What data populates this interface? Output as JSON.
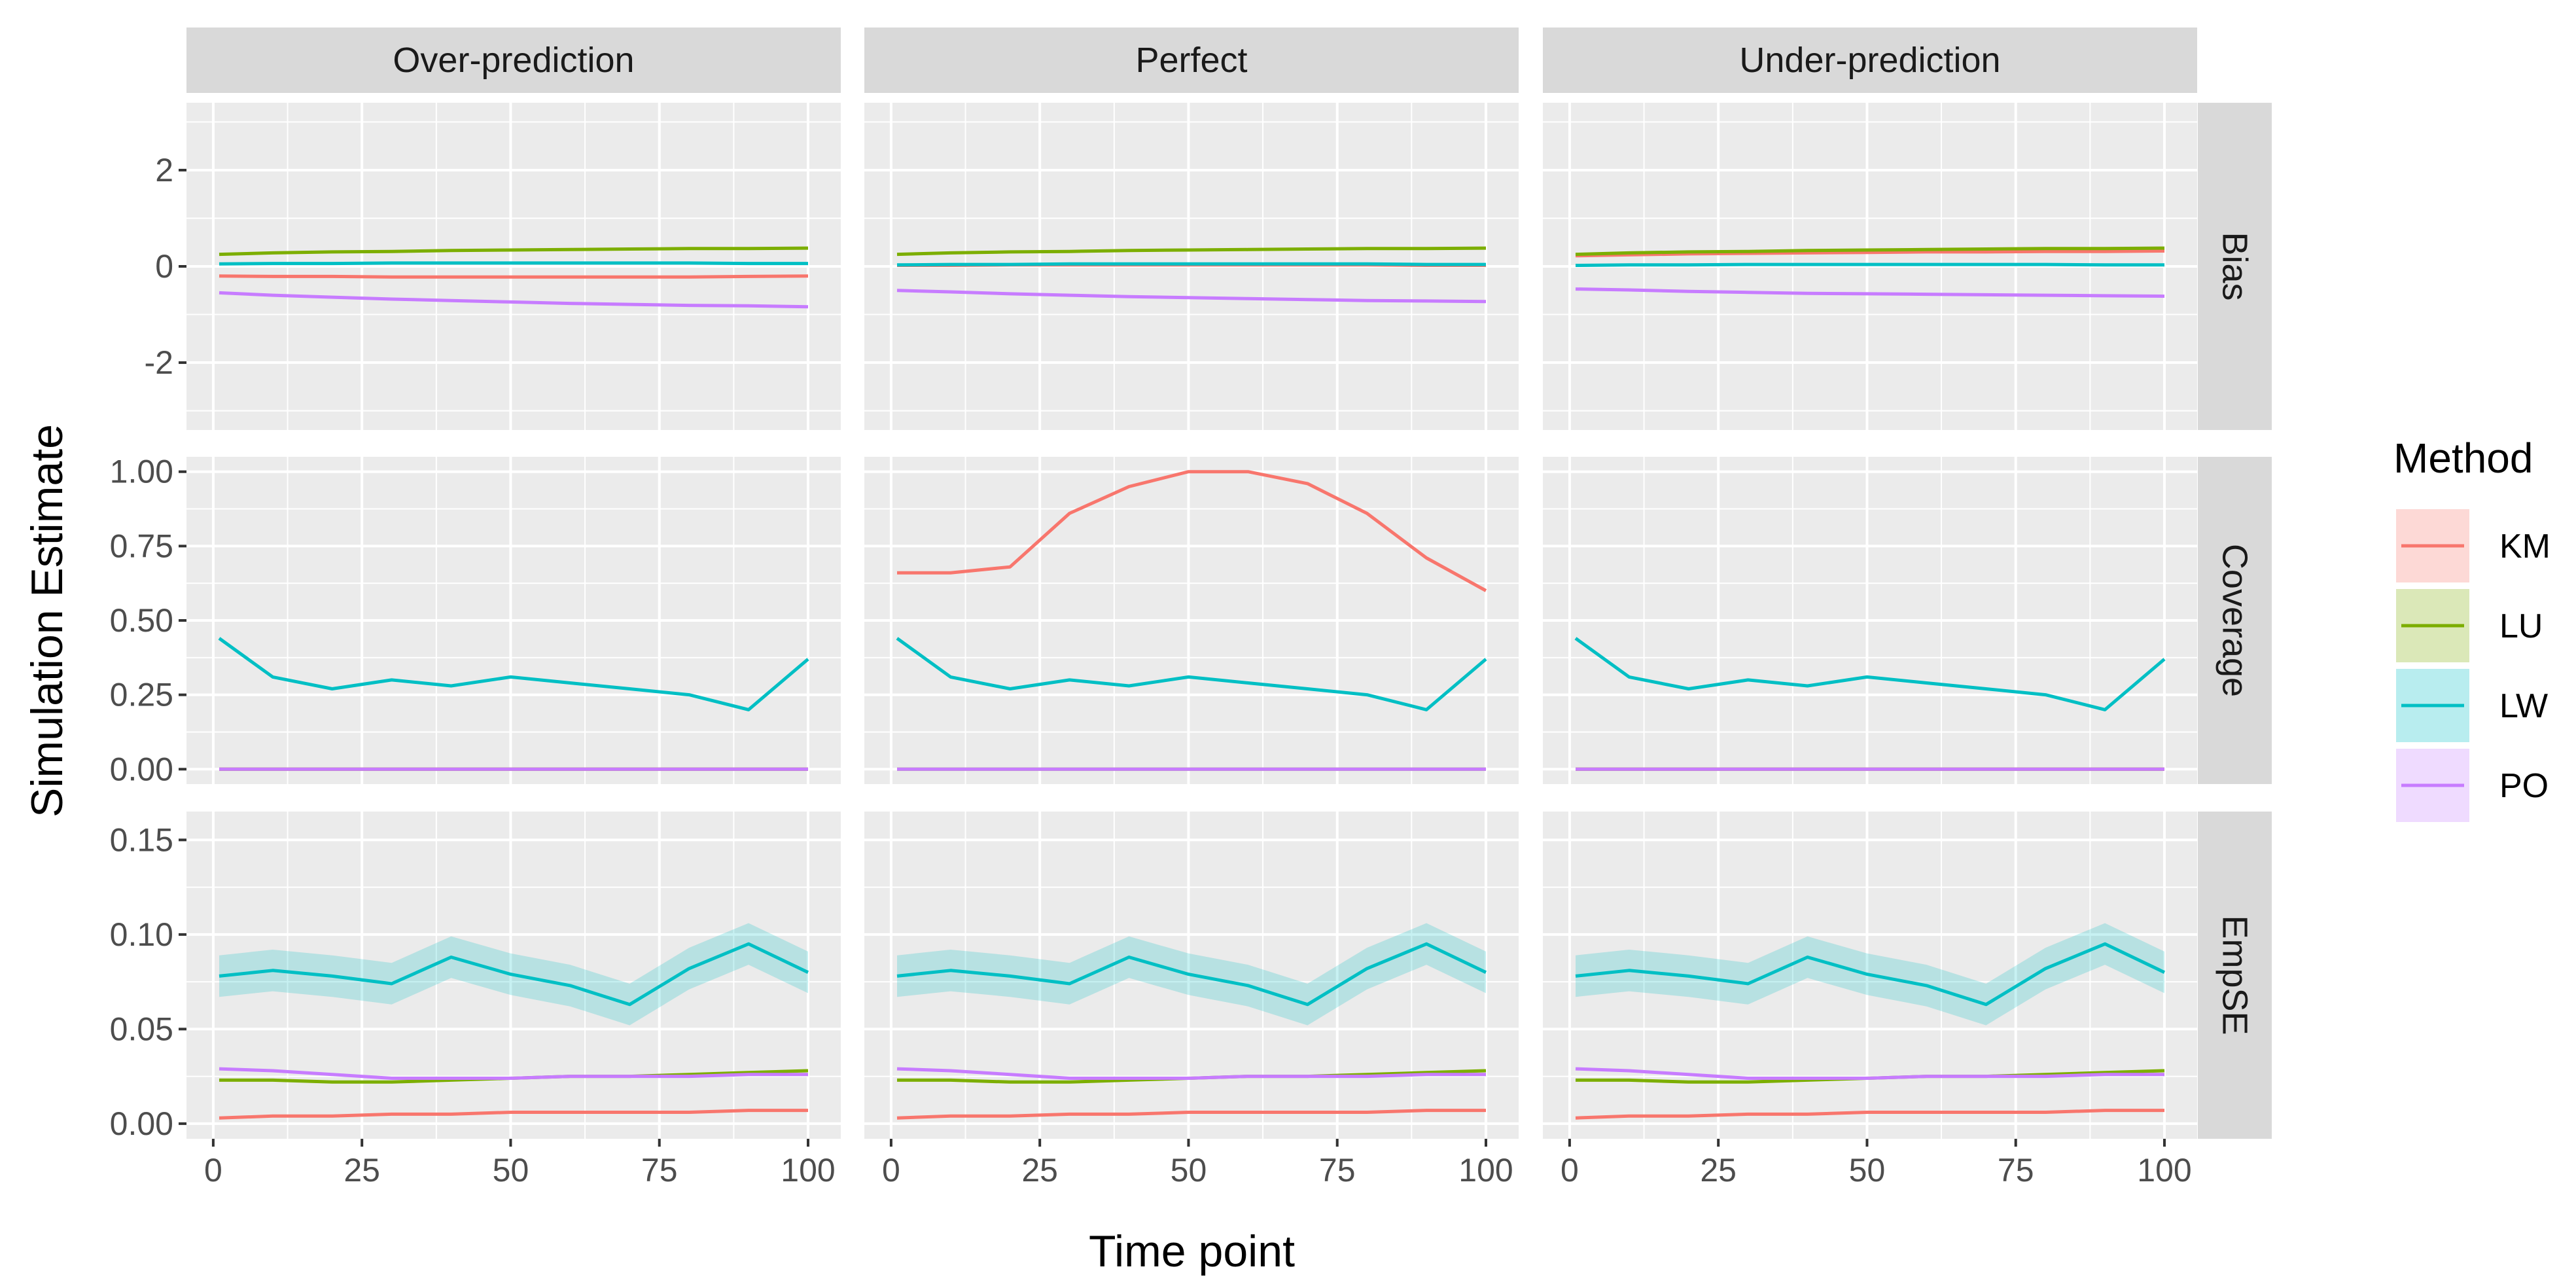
{
  "chart_data": {
    "type": "line",
    "xlabel": "Time point",
    "ylabel": "Simulation Estimate",
    "legend": {
      "title": "Method",
      "position": "right"
    },
    "columns": [
      "Over-prediction",
      "Perfect",
      "Under-prediction"
    ],
    "rows": [
      {
        "label": "Bias",
        "ylim": [
          -3.4,
          3.4
        ],
        "ticks": [
          -2,
          0,
          2
        ],
        "tick_labels": [
          "-2",
          "0",
          "2"
        ]
      },
      {
        "label": "Coverage",
        "ylim": [
          -0.05,
          1.05
        ],
        "ticks": [
          0,
          0.25,
          0.5,
          0.75,
          1
        ],
        "tick_labels": [
          "0.00",
          "0.25",
          "0.50",
          "0.75",
          "1.00"
        ]
      },
      {
        "label": "EmpSE",
        "ylim": [
          -0.008,
          0.165
        ],
        "ticks": [
          0,
          0.05,
          0.1,
          0.15
        ],
        "tick_labels": [
          "0.00",
          "0.05",
          "0.10",
          "0.15"
        ]
      }
    ],
    "x_ticks": [
      0,
      25,
      50,
      75,
      100
    ],
    "x_tick_labels": [
      "0",
      "25",
      "50",
      "75",
      "100"
    ],
    "xlim": [
      -4.5,
      105.5
    ],
    "grid": true,
    "series_meta": [
      {
        "name": "KM",
        "color": "#F8766D"
      },
      {
        "name": "LU",
        "color": "#7CAE00"
      },
      {
        "name": "LW",
        "color": "#00BFC4"
      },
      {
        "name": "PO",
        "color": "#C77CFF"
      }
    ],
    "x": [
      1,
      10,
      20,
      30,
      40,
      50,
      60,
      70,
      80,
      90,
      100
    ],
    "panels": {
      "Bias": {
        "Over-prediction": {
          "KM": [
            -0.2,
            -0.21,
            -0.21,
            -0.22,
            -0.22,
            -0.22,
            -0.22,
            -0.22,
            -0.22,
            -0.21,
            -0.2
          ],
          "LU": [
            0.25,
            0.28,
            0.3,
            0.31,
            0.33,
            0.34,
            0.35,
            0.36,
            0.37,
            0.37,
            0.38
          ],
          "LW": [
            0.05,
            0.06,
            0.06,
            0.07,
            0.07,
            0.07,
            0.07,
            0.07,
            0.07,
            0.06,
            0.06
          ],
          "PO": [
            -0.55,
            -0.6,
            -0.64,
            -0.68,
            -0.71,
            -0.74,
            -0.77,
            -0.79,
            -0.81,
            -0.82,
            -0.84
          ]
        },
        "Perfect": {
          "KM": [
            0.02,
            0.02,
            0.03,
            0.03,
            0.03,
            0.03,
            0.03,
            0.03,
            0.03,
            0.02,
            0.02
          ],
          "LU": [
            0.25,
            0.28,
            0.3,
            0.31,
            0.33,
            0.34,
            0.35,
            0.36,
            0.37,
            0.37,
            0.38
          ],
          "LW": [
            0.03,
            0.04,
            0.04,
            0.05,
            0.05,
            0.05,
            0.05,
            0.05,
            0.05,
            0.04,
            0.04
          ],
          "PO": [
            -0.5,
            -0.53,
            -0.57,
            -0.6,
            -0.63,
            -0.65,
            -0.67,
            -0.69,
            -0.71,
            -0.72,
            -0.73
          ]
        },
        "Under-prediction": {
          "KM": [
            0.22,
            0.24,
            0.26,
            0.27,
            0.28,
            0.29,
            0.3,
            0.3,
            0.31,
            0.31,
            0.32
          ],
          "LU": [
            0.25,
            0.28,
            0.3,
            0.31,
            0.33,
            0.34,
            0.35,
            0.36,
            0.37,
            0.37,
            0.38
          ],
          "LW": [
            0.02,
            0.03,
            0.03,
            0.04,
            0.04,
            0.04,
            0.04,
            0.04,
            0.04,
            0.03,
            0.03
          ],
          "PO": [
            -0.47,
            -0.49,
            -0.52,
            -0.54,
            -0.56,
            -0.57,
            -0.58,
            -0.59,
            -0.6,
            -0.61,
            -0.62
          ]
        }
      },
      "Coverage": {
        "Over-prediction": {
          "KM": [
            0,
            0,
            0,
            0,
            0,
            0,
            0,
            0,
            0,
            0,
            0
          ],
          "LU": [
            0,
            0,
            0,
            0,
            0,
            0,
            0,
            0,
            0,
            0,
            0
          ],
          "LW": [
            0.44,
            0.31,
            0.27,
            0.3,
            0.28,
            0.31,
            0.29,
            0.27,
            0.25,
            0.2,
            0.37
          ],
          "PO": [
            0,
            0,
            0,
            0,
            0,
            0,
            0,
            0,
            0,
            0,
            0
          ]
        },
        "Perfect": {
          "KM": [
            0.66,
            0.66,
            0.68,
            0.86,
            0.95,
            1,
            1,
            0.96,
            0.86,
            0.71,
            0.6
          ],
          "LU": [
            0,
            0,
            0,
            0,
            0,
            0,
            0,
            0,
            0,
            0,
            0
          ],
          "LW": [
            0.44,
            0.31,
            0.27,
            0.3,
            0.28,
            0.31,
            0.29,
            0.27,
            0.25,
            0.2,
            0.37
          ],
          "PO": [
            0,
            0,
            0,
            0,
            0,
            0,
            0,
            0,
            0,
            0,
            0
          ]
        },
        "Under-prediction": {
          "KM": [
            0,
            0,
            0,
            0,
            0,
            0,
            0,
            0,
            0,
            0,
            0
          ],
          "LU": [
            0,
            0,
            0,
            0,
            0,
            0,
            0,
            0,
            0,
            0,
            0
          ],
          "LW": [
            0.44,
            0.31,
            0.27,
            0.3,
            0.28,
            0.31,
            0.29,
            0.27,
            0.25,
            0.2,
            0.37
          ],
          "PO": [
            0,
            0,
            0,
            0,
            0,
            0,
            0,
            0,
            0,
            0,
            0
          ]
        }
      },
      "EmpSE": {
        "Over-prediction": {
          "KM": [
            0.003,
            0.004,
            0.004,
            0.005,
            0.005,
            0.006,
            0.006,
            0.006,
            0.006,
            0.007,
            0.007
          ],
          "LU": [
            0.023,
            0.023,
            0.022,
            0.022,
            0.023,
            0.024,
            0.025,
            0.025,
            0.026,
            0.027,
            0.028
          ],
          "LW": [
            0.078,
            0.081,
            0.078,
            0.074,
            0.088,
            0.079,
            0.073,
            0.063,
            0.082,
            0.095,
            0.08
          ],
          "PO": [
            0.029,
            0.028,
            0.026,
            0.024,
            0.024,
            0.024,
            0.025,
            0.025,
            0.025,
            0.026,
            0.026
          ],
          "LW_band": [
            0.011,
            0.011,
            0.011,
            0.011,
            0.011,
            0.011,
            0.011,
            0.011,
            0.011,
            0.011,
            0.011
          ]
        },
        "Perfect": {
          "KM": [
            0.003,
            0.004,
            0.004,
            0.005,
            0.005,
            0.006,
            0.006,
            0.006,
            0.006,
            0.007,
            0.007
          ],
          "LU": [
            0.023,
            0.023,
            0.022,
            0.022,
            0.023,
            0.024,
            0.025,
            0.025,
            0.026,
            0.027,
            0.028
          ],
          "LW": [
            0.078,
            0.081,
            0.078,
            0.074,
            0.088,
            0.079,
            0.073,
            0.063,
            0.082,
            0.095,
            0.08
          ],
          "PO": [
            0.029,
            0.028,
            0.026,
            0.024,
            0.024,
            0.024,
            0.025,
            0.025,
            0.025,
            0.026,
            0.026
          ],
          "LW_band": [
            0.011,
            0.011,
            0.011,
            0.011,
            0.011,
            0.011,
            0.011,
            0.011,
            0.011,
            0.011,
            0.011
          ]
        },
        "Under-prediction": {
          "KM": [
            0.003,
            0.004,
            0.004,
            0.005,
            0.005,
            0.006,
            0.006,
            0.006,
            0.006,
            0.007,
            0.007
          ],
          "LU": [
            0.023,
            0.023,
            0.022,
            0.022,
            0.023,
            0.024,
            0.025,
            0.025,
            0.026,
            0.027,
            0.028
          ],
          "LW": [
            0.078,
            0.081,
            0.078,
            0.074,
            0.088,
            0.079,
            0.073,
            0.063,
            0.082,
            0.095,
            0.08
          ],
          "PO": [
            0.029,
            0.028,
            0.026,
            0.024,
            0.024,
            0.024,
            0.025,
            0.025,
            0.025,
            0.026,
            0.026
          ],
          "LW_band": [
            0.011,
            0.011,
            0.011,
            0.011,
            0.011,
            0.011,
            0.011,
            0.011,
            0.011,
            0.011,
            0.011
          ]
        }
      }
    }
  }
}
